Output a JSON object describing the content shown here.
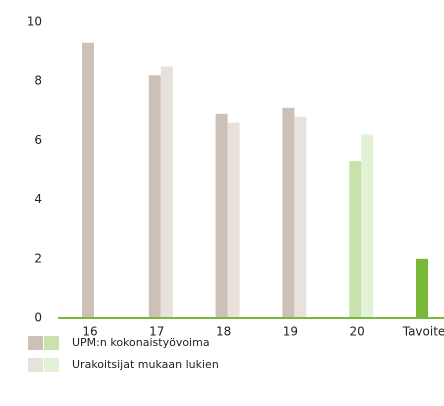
{
  "chart_data": {
    "type": "bar",
    "categories": [
      "16",
      "17",
      "18",
      "19",
      "20",
      "Tavoite"
    ],
    "series": [
      {
        "name": "UPM:n kokonaistyövoima",
        "colors": [
          "#cdc0b6",
          "#cdc0b6",
          "#cdc0b6",
          "#cdc0b6",
          "#c9e2ab",
          "#7ab83a"
        ],
        "values": [
          9.3,
          8.2,
          6.9,
          7.1,
          5.3,
          2.0
        ]
      },
      {
        "name": "Urakoitsijat mukaan lukien",
        "colors": [
          "#e9e2dc",
          "#e9e2dc",
          "#e9e2dc",
          "#e9e2dc",
          "#e3f1d6",
          "#e3f1d6"
        ],
        "values": [
          null,
          8.5,
          6.6,
          6.8,
          6.2,
          null
        ]
      }
    ],
    "ylim": [
      0,
      10
    ],
    "yticks": [
      0,
      2,
      4,
      6,
      8,
      10
    ],
    "axis_color": "#7ab83a"
  }
}
